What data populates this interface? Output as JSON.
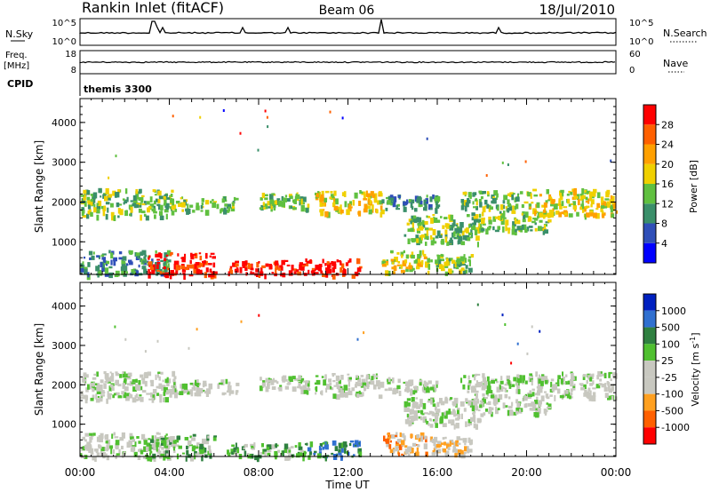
{
  "header": {
    "station": "Rankin Inlet (fitACF)",
    "beam": "Beam 06",
    "date": "18/Jul/2010"
  },
  "sky_panel": {
    "left_label": "N.Sky",
    "right_label": "N.Search",
    "left_ticks": [
      "10^5",
      "10^0"
    ],
    "right_ticks": [
      "10^5",
      "10^0"
    ]
  },
  "freq_panel": {
    "left_label_line1": "Freq.",
    "left_label_line2": "[MHz]",
    "right_label": "Nave",
    "left_ticks": [
      "18",
      "8"
    ],
    "right_ticks": [
      "60",
      "0"
    ]
  },
  "cpid": {
    "label": "CPID",
    "program": "themis 3300"
  },
  "chart_data": [
    {
      "type": "heatmap",
      "title": "",
      "xlabel": "",
      "ylabel": "Slant Range [km]",
      "x_range_hours": [
        0,
        24
      ],
      "y_range_km": [
        180,
        4600
      ],
      "x_ticks": [
        "00:00",
        "04:00",
        "08:00",
        "12:00",
        "16:00",
        "20:00",
        "00:00"
      ],
      "y_ticks": [
        1000,
        2000,
        3000,
        4000
      ],
      "colorbar": {
        "label": "Power [dB]",
        "ticks": [
          "4",
          "8",
          "12",
          "16",
          "20",
          "24",
          "28"
        ],
        "colors": [
          "#0000ff",
          "#2f4fb8",
          "#3a8f6a",
          "#60c040",
          "#f0d000",
          "#ffa000",
          "#ff6000",
          "#ff0000"
        ]
      },
      "bands": [
        {
          "t0": 0.0,
          "t1": 4.2,
          "r0": 1650,
          "r1": 2350,
          "level": 3
        },
        {
          "t0": 3.6,
          "t1": 7.0,
          "r0": 1800,
          "r1": 2150,
          "level": 3
        },
        {
          "t0": 8.0,
          "t1": 10.2,
          "r0": 1850,
          "r1": 2250,
          "level": 3
        },
        {
          "t0": 10.5,
          "t1": 13.5,
          "r0": 1750,
          "r1": 2300,
          "level": 4
        },
        {
          "t0": 13.5,
          "t1": 16.0,
          "r0": 1850,
          "r1": 2200,
          "level": 2
        },
        {
          "t0": 14.5,
          "t1": 18.0,
          "r0": 1000,
          "r1": 1700,
          "level": 3
        },
        {
          "t0": 17.5,
          "t1": 21.0,
          "r0": 1300,
          "r1": 1800,
          "level": 3
        },
        {
          "t0": 17.0,
          "t1": 20.0,
          "r0": 1850,
          "r1": 2300,
          "level": 3
        },
        {
          "t0": 20.0,
          "t1": 24.0,
          "r0": 1700,
          "r1": 2350,
          "level": 4
        },
        {
          "t0": 0.0,
          "t1": 4.0,
          "r0": 180,
          "r1": 800,
          "level": 2
        },
        {
          "t0": 3.0,
          "t1": 6.0,
          "r0": 180,
          "r1": 750,
          "level": 7
        },
        {
          "t0": 6.5,
          "t1": 10.0,
          "r0": 180,
          "r1": 550,
          "level": 7
        },
        {
          "t0": 10.0,
          "t1": 12.5,
          "r0": 180,
          "r1": 600,
          "level": 7
        },
        {
          "t0": 13.5,
          "t1": 15.5,
          "r0": 250,
          "r1": 800,
          "level": 4
        },
        {
          "t0": 15.5,
          "t1": 17.5,
          "r0": 250,
          "r1": 700,
          "level": 3
        }
      ]
    },
    {
      "type": "heatmap",
      "title": "",
      "xlabel": "Time UT",
      "ylabel": "Slant Range [km]",
      "x_range_hours": [
        0,
        24
      ],
      "y_range_km": [
        180,
        4600
      ],
      "x_ticks": [
        "00:00",
        "04:00",
        "08:00",
        "12:00",
        "16:00",
        "20:00",
        "00:00"
      ],
      "y_ticks": [
        1000,
        2000,
        3000,
        4000
      ],
      "colorbar": {
        "label": "Velocity [m s^-1]",
        "ticks": [
          "1000",
          "500",
          "100",
          "25",
          "-25",
          "-100",
          "-500",
          "-1000"
        ],
        "colors": [
          "#0020c0",
          "#3070d0",
          "#2f8040",
          "#50c030",
          "#c8c8c0",
          "#c8c8c0",
          "#ffa020",
          "#ff6000",
          "#ff0000"
        ]
      },
      "bands": [
        {
          "t0": 0.0,
          "t1": 4.2,
          "r0": 1650,
          "r1": 2350,
          "level": 4
        },
        {
          "t0": 3.6,
          "t1": 7.0,
          "r0": 1800,
          "r1": 2150,
          "level": 4
        },
        {
          "t0": 8.0,
          "t1": 10.2,
          "r0": 1850,
          "r1": 2250,
          "level": 4
        },
        {
          "t0": 10.5,
          "t1": 13.5,
          "r0": 1750,
          "r1": 2300,
          "level": 4
        },
        {
          "t0": 13.5,
          "t1": 16.0,
          "r0": 1850,
          "r1": 2200,
          "level": 4
        },
        {
          "t0": 14.5,
          "t1": 18.0,
          "r0": 1000,
          "r1": 1700,
          "level": 4
        },
        {
          "t0": 17.5,
          "t1": 21.0,
          "r0": 1300,
          "r1": 1800,
          "level": 4
        },
        {
          "t0": 17.0,
          "t1": 20.0,
          "r0": 1850,
          "r1": 2300,
          "level": 4
        },
        {
          "t0": 20.0,
          "t1": 24.0,
          "r0": 1700,
          "r1": 2350,
          "level": 4
        },
        {
          "t0": 0.0,
          "t1": 4.0,
          "r0": 180,
          "r1": 800,
          "level": 4
        },
        {
          "t0": 3.0,
          "t1": 6.0,
          "r0": 180,
          "r1": 750,
          "level": 3
        },
        {
          "t0": 6.5,
          "t1": 10.0,
          "r0": 180,
          "r1": 550,
          "level": 3
        },
        {
          "t0": 10.0,
          "t1": 12.5,
          "r0": 180,
          "r1": 600,
          "level": 2
        },
        {
          "t0": 13.5,
          "t1": 15.5,
          "r0": 250,
          "r1": 800,
          "level": 6
        },
        {
          "t0": 15.5,
          "t1": 17.5,
          "r0": 250,
          "r1": 700,
          "level": 5
        }
      ]
    }
  ]
}
